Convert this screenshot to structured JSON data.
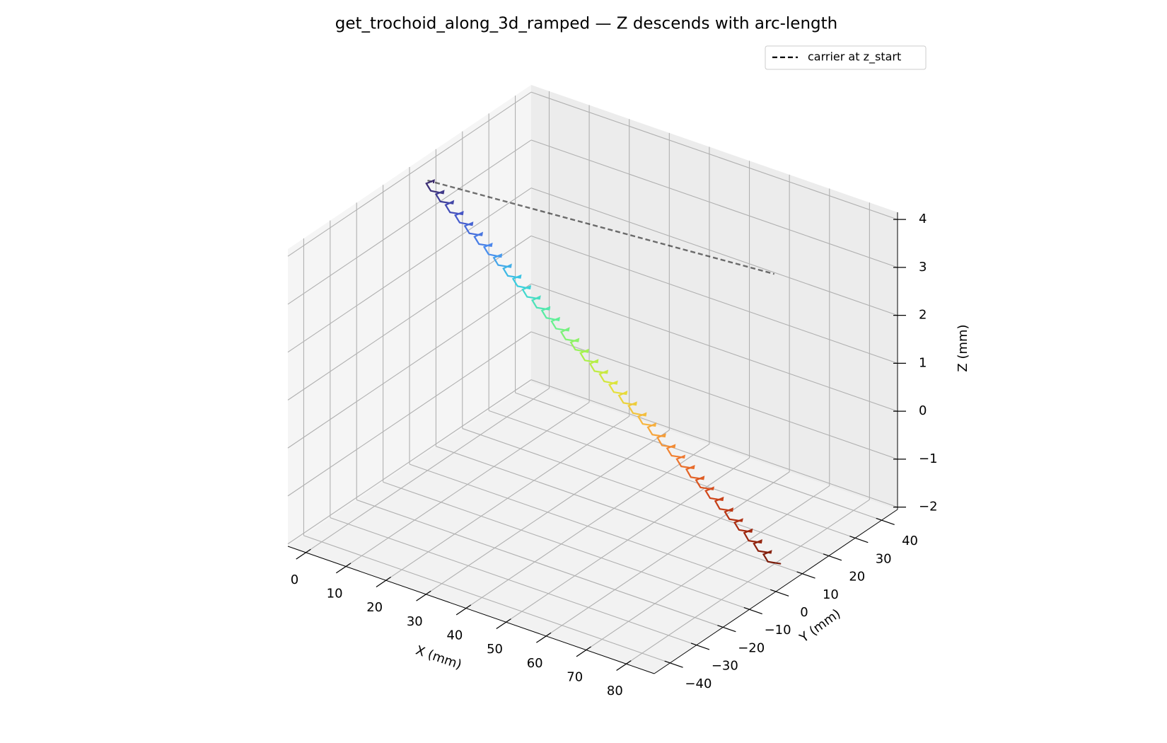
{
  "chart_data": {
    "type": "line3d",
    "title": "get_trochoid_along_3d_ramped — Z descends with arc-length",
    "xlabel": "X (mm)",
    "ylabel": "Y (mm)",
    "zlabel": "Z (mm)",
    "xlim": [
      -4.5,
      87
    ],
    "ylim": [
      -46,
      46
    ],
    "zlim": [
      -2.05,
      4.15
    ],
    "xticks": [
      0,
      10,
      20,
      30,
      40,
      50,
      60,
      70,
      80
    ],
    "yticks": [
      {
        "value": -40,
        "label": "−40"
      },
      {
        "value": -30,
        "label": "−30"
      },
      {
        "value": -20,
        "label": "−20"
      },
      {
        "value": -10,
        "label": "−10"
      },
      0,
      10,
      20,
      30,
      40
    ],
    "zticks": [
      {
        "value": -2,
        "label": "−2"
      },
      {
        "value": -1,
        "label": "−1"
      },
      0,
      1,
      2,
      3,
      4
    ],
    "grid": true,
    "legend": "upper right",
    "series": [
      {
        "name": "carrier at z_start",
        "color": "#000000",
        "dashed": true,
        "x": [
          0,
          80
        ],
        "y": [
          0,
          10
        ],
        "z": [
          4,
          4
        ]
      },
      {
        "colors": [
          "#3b2865",
          "#4555c8",
          "#4a8cf0",
          "#38d0e0",
          "#5ef09a",
          "#a5f34c",
          "#e3e23a",
          "#f8b540",
          "#f07a30",
          "#d44a1c",
          "#a82b10",
          "#7a1d0c"
        ],
        "x": [
          1.5,
          0.56,
          -0.39,
          1.67,
          3.72,
          2.78,
          1.83,
          3.89,
          5.94,
          5,
          4.06,
          6.11,
          8.17,
          7.22,
          6.28,
          8.33,
          10.39,
          9.44,
          8.5,
          10.56,
          12.61,
          11.67,
          10.72,
          12.78,
          14.83,
          13.89,
          12.94,
          15,
          17.06,
          16.11,
          15.17,
          17.22,
          19.28,
          18.33,
          17.39,
          19.44,
          21.5,
          20.56,
          19.61,
          21.67,
          23.72,
          22.78,
          21.83,
          23.89,
          25.94,
          25,
          24.06,
          26.11,
          28.17,
          27.22,
          26.28,
          28.33,
          30.39,
          29.44,
          28.5,
          30.56,
          32.61,
          31.67,
          30.72,
          32.78,
          34.83,
          33.89,
          32.94,
          35,
          37.06,
          36.11,
          35.17,
          37.22,
          39.28,
          38.33,
          37.39,
          39.44,
          41.5,
          40.56,
          39.61,
          41.67,
          43.72,
          42.78,
          41.83,
          43.89,
          45.94,
          45,
          44.06,
          46.11,
          48.17,
          47.22,
          46.28,
          48.33,
          50.39,
          49.44,
          48.5,
          50.56,
          52.61,
          51.67,
          50.72,
          52.78,
          54.83,
          53.89,
          52.94,
          55,
          57.06,
          56.11,
          55.17,
          57.22,
          59.28,
          58.33,
          57.39,
          59.44,
          61.5,
          60.56,
          59.61,
          61.67,
          63.72,
          62.78,
          61.83,
          63.89,
          65.94,
          65,
          64.06,
          66.11,
          68.17,
          67.22,
          66.28,
          68.33,
          70.39,
          69.44,
          68.5,
          70.56,
          72.61,
          71.67,
          70.72,
          72.78,
          74.83,
          73.89,
          72.94,
          75,
          77.06,
          76.11,
          75.17,
          77.22,
          79.28,
          78.33,
          77.39,
          79.44,
          81.5
        ],
        "y": [
          0,
          1.57,
          0.14,
          -1.29,
          0.28,
          1.85,
          0.42,
          -1.01,
          0.56,
          2.13,
          0.69,
          -0.74,
          0.83,
          2.4,
          0.97,
          -0.46,
          1.11,
          2.68,
          1.25,
          -0.18,
          1.39,
          2.96,
          1.53,
          0.1,
          1.67,
          3.24,
          1.81,
          0.38,
          1.94,
          3.51,
          2.08,
          0.65,
          2.22,
          3.79,
          2.36,
          0.93,
          2.5,
          4.07,
          2.64,
          1.21,
          2.78,
          4.35,
          2.92,
          1.49,
          3.06,
          4.63,
          3.19,
          1.76,
          3.33,
          4.9,
          3.47,
          2.04,
          3.61,
          5.18,
          3.75,
          2.32,
          3.89,
          5.46,
          4.03,
          2.6,
          4.17,
          5.74,
          4.31,
          2.88,
          4.44,
          6.01,
          4.58,
          3.15,
          4.72,
          6.29,
          4.86,
          3.43,
          5,
          6.57,
          5.14,
          3.71,
          5.28,
          6.85,
          5.42,
          3.99,
          5.56,
          7.13,
          5.69,
          4.26,
          5.83,
          7.4,
          5.97,
          4.54,
          6.11,
          7.68,
          6.25,
          4.82,
          6.39,
          7.96,
          6.53,
          5.1,
          6.67,
          8.24,
          6.81,
          5.38,
          6.94,
          8.51,
          7.08,
          5.65,
          7.22,
          8.79,
          7.36,
          5.93,
          7.5,
          9.07,
          7.64,
          6.21,
          7.78,
          9.35,
          7.92,
          6.49,
          8.06,
          9.63,
          8.19,
          6.76,
          8.33,
          9.9,
          8.47,
          7.04,
          8.61,
          10.18,
          8.75,
          7.32,
          8.89,
          10.46,
          9.03,
          7.6,
          9.17,
          10.74,
          9.31,
          7.88,
          9.44,
          11.01,
          9.58,
          8.15,
          9.72,
          11.29,
          9.86,
          8.43,
          10
        ],
        "z": [
          4,
          3.96,
          3.92,
          3.88,
          3.83,
          3.79,
          3.75,
          3.71,
          3.67,
          3.63,
          3.58,
          3.54,
          3.5,
          3.46,
          3.42,
          3.38,
          3.33,
          3.29,
          3.25,
          3.21,
          3.17,
          3.13,
          3.08,
          3.04,
          3,
          2.96,
          2.92,
          2.88,
          2.83,
          2.79,
          2.75,
          2.71,
          2.67,
          2.63,
          2.58,
          2.54,
          2.5,
          2.46,
          2.42,
          2.38,
          2.33,
          2.29,
          2.25,
          2.21,
          2.17,
          2.13,
          2.08,
          2.04,
          2,
          1.96,
          1.92,
          1.88,
          1.83,
          1.79,
          1.75,
          1.71,
          1.67,
          1.63,
          1.58,
          1.54,
          1.5,
          1.46,
          1.42,
          1.38,
          1.33,
          1.29,
          1.25,
          1.21,
          1.17,
          1.13,
          1.08,
          1.04,
          1,
          0.96,
          0.92,
          0.88,
          0.83,
          0.79,
          0.75,
          0.71,
          0.67,
          0.63,
          0.58,
          0.54,
          0.5,
          0.46,
          0.42,
          0.38,
          0.33,
          0.29,
          0.25,
          0.21,
          0.17,
          0.13,
          0.08,
          0.04,
          0,
          -0.04,
          -0.08,
          -0.13,
          -0.17,
          -0.21,
          -0.25,
          -0.29,
          -0.33,
          -0.38,
          -0.42,
          -0.46,
          -0.5,
          -0.54,
          -0.58,
          -0.63,
          -0.67,
          -0.71,
          -0.75,
          -0.79,
          -0.83,
          -0.88,
          -0.92,
          -0.96,
          -1,
          -1.04,
          -1.08,
          -1.13,
          -1.17,
          -1.21,
          -1.25,
          -1.29,
          -1.33,
          -1.38,
          -1.42,
          -1.46,
          -1.5,
          -1.54,
          -1.58,
          -1.63,
          -1.67,
          -1.71,
          -1.75,
          -1.79,
          -1.83,
          -1.88,
          -1.92,
          -1.96,
          -2
        ]
      }
    ]
  }
}
